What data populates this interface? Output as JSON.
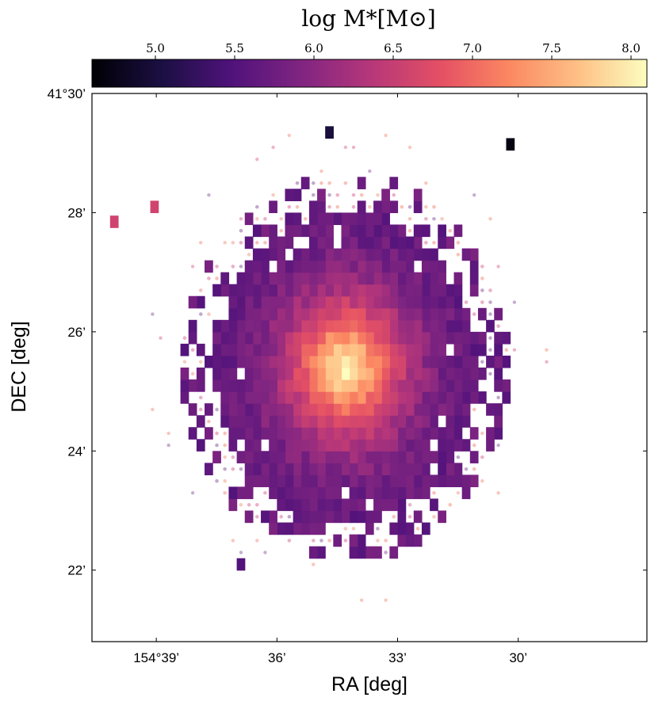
{
  "chart_data": {
    "type": "heatmap",
    "title": "",
    "colorbar": {
      "label": "log M*[M⊙]",
      "range": [
        4.6,
        8.1
      ],
      "ticks": [
        "5.0",
        "5.5",
        "6.0",
        "6.5",
        "7.0",
        "7.5",
        "8.0"
      ],
      "tick_values": [
        5.0,
        5.5,
        6.0,
        6.5,
        7.0,
        7.5,
        8.0
      ],
      "colormap": "magma"
    },
    "xlabel": "RA [deg]",
    "ylabel": "DEC [deg]",
    "xticks": [
      "154°39’",
      "36’",
      "33’",
      "30’"
    ],
    "yticks": [
      "41°30’",
      "28’",
      "26’",
      "24’",
      "22’"
    ],
    "x_tick_values_arcmin": [
      39,
      36,
      33,
      30
    ],
    "y_tick_values_arcmin": [
      30,
      28,
      26,
      24,
      22
    ],
    "xlim_arcmin": [
      40.6,
      26.8
    ],
    "ylim_arcmin": [
      20.8,
      30.0
    ],
    "x_inverted": true,
    "center_arcmin": {
      "ra": 34.3,
      "dec": 25.4
    },
    "peak_log_mass": 8.0,
    "edge_log_mass": 5.6,
    "pixel_size_arcmin": 0.2,
    "outlier_pixels": [
      {
        "ra": 40.05,
        "dec": 27.85,
        "value": 6.6
      },
      {
        "ra": 39.05,
        "dec": 28.1,
        "value": 6.6
      },
      {
        "ra": 30.2,
        "dec": 29.15,
        "value": 4.7
      },
      {
        "ra": 36.9,
        "dec": 22.1,
        "value": 5.5
      },
      {
        "ra": 34.7,
        "dec": 29.35,
        "value": 5.0
      }
    ],
    "grid": false,
    "legend": "none"
  }
}
